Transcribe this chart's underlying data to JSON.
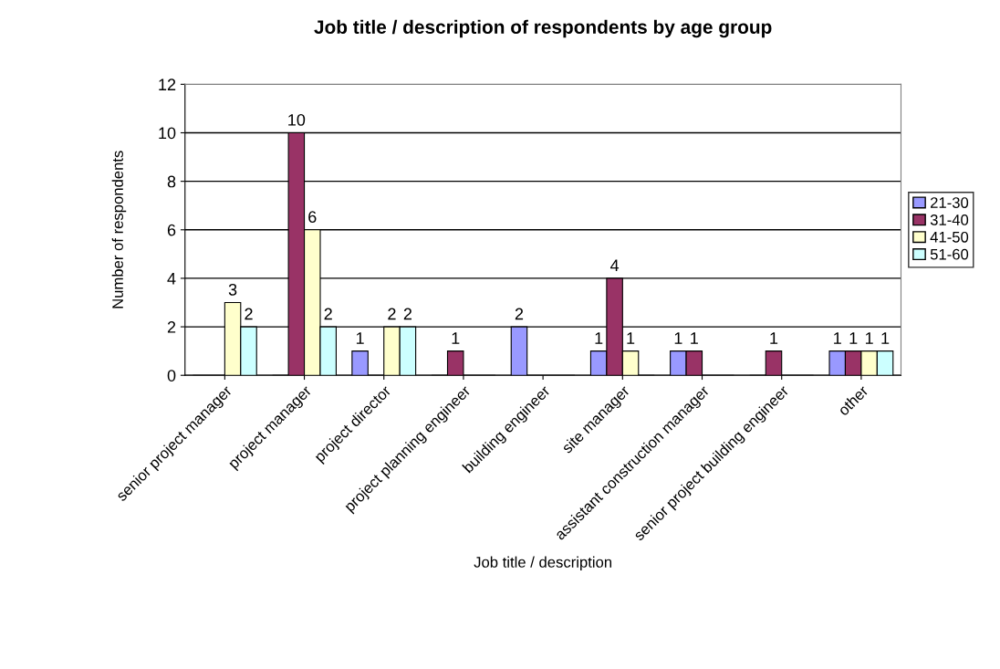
{
  "chart_data": {
    "type": "bar",
    "title": "Job title / description of respondents by age group",
    "xlabel": "Job title / description",
    "ylabel": "Number of respondents",
    "categories": [
      "senior project manager",
      "project manager",
      "project director",
      "project planning engineer",
      "building engineer",
      "site manager",
      "assistant construction manager",
      "senior project building engineer",
      "other"
    ],
    "series": [
      {
        "name": "21-30",
        "color": "#9999ff",
        "values": [
          0,
          0,
          1,
          0,
          2,
          1,
          1,
          0,
          1
        ],
        "value_labels": [
          null,
          null,
          "1",
          null,
          "2",
          "1",
          "1",
          null,
          "1"
        ]
      },
      {
        "name": "31-40",
        "color": "#993366",
        "values": [
          0,
          10,
          0,
          1,
          0,
          4,
          1,
          1,
          1
        ],
        "value_labels": [
          null,
          "10",
          null,
          "1",
          null,
          "4",
          "1",
          "1",
          "1"
        ]
      },
      {
        "name": "41-50",
        "color": "#ffffcc",
        "values": [
          3,
          6,
          2,
          0,
          0,
          1,
          0,
          0,
          1
        ],
        "value_labels": [
          "3",
          "6",
          "2",
          null,
          null,
          "1",
          null,
          null,
          "1"
        ]
      },
      {
        "name": "51-60",
        "color": "#ccffff",
        "values": [
          2,
          2,
          2,
          0,
          0,
          0,
          0,
          0,
          1
        ],
        "value_labels": [
          "2",
          "2",
          "2",
          null,
          null,
          null,
          null,
          null,
          "1"
        ]
      }
    ],
    "ylim": [
      0,
      12
    ],
    "yticks": [
      0,
      2,
      4,
      6,
      8,
      10,
      12
    ],
    "grid": "y",
    "legend": "right"
  }
}
